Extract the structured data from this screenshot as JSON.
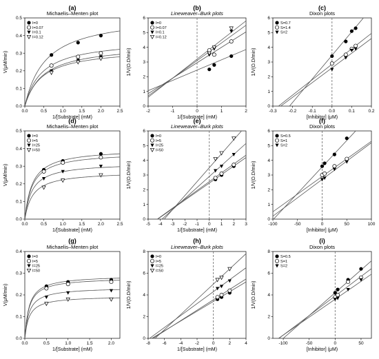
{
  "figure": {
    "theme": {
      "line_color": "#555555",
      "marker_color": "#000000",
      "dash_color": "#666666"
    }
  },
  "chart_data": [
    {
      "id": "a",
      "letter": "(a)",
      "title": "Michaelis–Menten plot",
      "title_italic": false,
      "type": "scatter",
      "xlabel": "1/[Substrate] (mM)",
      "ylabel": "V(μM/min)",
      "xlim": [
        0,
        2.5
      ],
      "ylim": [
        0,
        0.5
      ],
      "xticks": [
        0.0,
        0.5,
        1.0,
        1.5,
        2.0,
        2.5
      ],
      "xtick_labels": [
        "0.0",
        "0.5",
        "1.0",
        "1.5",
        "2.0",
        "2.5"
      ],
      "yticks": [
        0,
        0.1,
        0.2,
        0.3,
        0.4,
        0.5
      ],
      "ytick_labels": [
        "0.0",
        "0.1",
        "0.2",
        "0.3",
        "0.4",
        "0.5"
      ],
      "legend_position": "top-left",
      "series": [
        {
          "name": "I=0",
          "marker": "filled-circle",
          "x": [
            0.7,
            1.4,
            2.0
          ],
          "y": [
            0.29,
            0.36,
            0.4
          ],
          "fit": {
            "kind": "mm",
            "vmax": 0.52,
            "km": 0.55
          }
        },
        {
          "name": "I=0.07",
          "marker": "open-circle",
          "x": [
            0.7,
            1.4,
            2.0
          ],
          "y": [
            0.23,
            0.28,
            0.3
          ],
          "fit": {
            "kind": "mm",
            "vmax": 0.38,
            "km": 0.45
          }
        },
        {
          "name": "I=0.1",
          "marker": "filled-triangle",
          "x": [
            0.7,
            1.4,
            2.0
          ],
          "y": [
            0.2,
            0.26,
            0.28
          ],
          "fit": {
            "kind": "mm",
            "vmax": 0.35,
            "km": 0.48
          }
        },
        {
          "name": "I=0.12",
          "marker": "open-triangle",
          "x": [
            0.7,
            1.4,
            2.0
          ],
          "y": [
            0.19,
            0.25,
            0.27
          ],
          "fit": {
            "kind": "mm",
            "vmax": 0.33,
            "km": 0.45
          }
        }
      ]
    },
    {
      "id": "b",
      "letter": "(b)",
      "title": "Lineweaver–Burk plots",
      "title_italic": true,
      "type": "scatter",
      "xlabel": "1/[Substrate] (mM)",
      "ylabel": "1/V(O.D/min)",
      "xlim": [
        -2,
        2
      ],
      "ylim": [
        0,
        6
      ],
      "vline": 0,
      "xticks": [
        -2,
        -1,
        0,
        1,
        2
      ],
      "xtick_labels": [
        "-2",
        "-1",
        "0",
        "1",
        "2"
      ],
      "yticks": [
        0,
        1,
        2,
        3,
        4,
        5,
        6
      ],
      "ytick_labels": [
        "0",
        "1",
        "2",
        "3",
        "4",
        "5",
        "6"
      ],
      "legend_position": "top-left",
      "series": [
        {
          "name": "I=0",
          "marker": "filled-circle",
          "x": [
            0.5,
            0.7,
            1.4
          ],
          "y": [
            2.5,
            2.8,
            3.4
          ],
          "fit": {
            "kind": "line",
            "slope": 0.7,
            "intercept": 2.45
          }
        },
        {
          "name": "I=0.07",
          "marker": "open-circle",
          "x": [
            0.5,
            0.7,
            1.4
          ],
          "y": [
            3.8,
            3.5,
            4.4
          ],
          "fit": {
            "kind": "line",
            "slope": 1.05,
            "intercept": 2.95
          }
        },
        {
          "name": "I=0.1",
          "marker": "filled-triangle",
          "x": [
            0.5,
            0.7,
            1.4
          ],
          "y": [
            3.5,
            3.9,
            5.1
          ],
          "fit": {
            "kind": "line",
            "slope": 1.2,
            "intercept": 3.1
          }
        },
        {
          "name": "I=0.12",
          "marker": "open-triangle",
          "x": [
            0.5,
            0.7,
            1.4
          ],
          "y": [
            3.6,
            4.0,
            5.3
          ],
          "fit": {
            "kind": "line",
            "slope": 1.3,
            "intercept": 3.2
          }
        }
      ]
    },
    {
      "id": "c",
      "letter": "(c)",
      "title": "Dixon plots",
      "title_italic": false,
      "type": "scatter",
      "xlabel": "[Inhibitor] (μM)",
      "ylabel": "1/V(O.D/min)",
      "xlim": [
        -0.3,
        0.2
      ],
      "ylim": [
        0,
        6
      ],
      "vline": 0,
      "xticks": [
        -0.3,
        -0.2,
        -0.1,
        0,
        0.1,
        0.2
      ],
      "xtick_labels": [
        "-0.3",
        "-0.2",
        "-0.1",
        "0.0",
        "0.1",
        "0.2"
      ],
      "yticks": [
        0,
        1,
        2,
        3,
        4,
        5,
        6
      ],
      "ytick_labels": [
        "0",
        "1",
        "2",
        "3",
        "4",
        "5",
        "6"
      ],
      "legend_position": "top-left",
      "series": [
        {
          "name": "S=0.7",
          "marker": "filled-circle",
          "x": [
            0,
            0.07,
            0.1,
            0.12
          ],
          "y": [
            3.4,
            4.4,
            5.1,
            5.3
          ],
          "fit": {
            "kind": "line",
            "slope": 16.0,
            "intercept": 3.45
          }
        },
        {
          "name": "S=1.4",
          "marker": "open-circle",
          "x": [
            0,
            0.07,
            0.1,
            0.12
          ],
          "y": [
            2.9,
            3.5,
            3.9,
            4.1
          ],
          "fit": {
            "kind": "line",
            "slope": 10.5,
            "intercept": 2.85
          }
        },
        {
          "name": "S=2",
          "marker": "filled-triangle",
          "x": [
            0,
            0.07,
            0.1,
            0.12
          ],
          "y": [
            2.5,
            3.3,
            3.8,
            3.9
          ],
          "fit": {
            "kind": "line",
            "slope": 10.0,
            "intercept": 2.6
          }
        }
      ]
    },
    {
      "id": "d",
      "letter": "(d)",
      "title": "Michaelis–Menten plot",
      "title_italic": false,
      "type": "scatter",
      "xlabel": "1/[Substrate] (mM)",
      "ylabel": "V(μM/min)",
      "xlim": [
        0,
        2.5
      ],
      "ylim": [
        0,
        0.5
      ],
      "xticks": [
        0.0,
        0.5,
        1.0,
        1.5,
        2.0,
        2.5
      ],
      "xtick_labels": [
        "0.0",
        "0.5",
        "1.0",
        "1.5",
        "2.0",
        "2.5"
      ],
      "yticks": [
        0,
        0.1,
        0.2,
        0.3,
        0.4,
        0.5
      ],
      "ytick_labels": [
        "0.0",
        "0.1",
        "0.2",
        "0.3",
        "0.4",
        "0.5"
      ],
      "legend_position": "top-left",
      "series": [
        {
          "name": "I=0",
          "marker": "filled-circle",
          "x": [
            0.5,
            1.0,
            2.0
          ],
          "y": [
            0.28,
            0.33,
            0.37
          ],
          "fit": {
            "kind": "mm",
            "vmax": 0.4,
            "km": 0.2
          }
        },
        {
          "name": "I=5",
          "marker": "open-circle",
          "x": [
            0.5,
            1.0,
            2.0
          ],
          "y": [
            0.27,
            0.32,
            0.35
          ],
          "fit": {
            "kind": "mm",
            "vmax": 0.38,
            "km": 0.2
          }
        },
        {
          "name": "I=25",
          "marker": "filled-triangle",
          "x": [
            0.5,
            1.0,
            2.0
          ],
          "y": [
            0.23,
            0.27,
            0.3
          ],
          "fit": {
            "kind": "mm",
            "vmax": 0.32,
            "km": 0.19
          }
        },
        {
          "name": "I=50",
          "marker": "open-triangle",
          "x": [
            0.5,
            1.0,
            2.0
          ],
          "y": [
            0.18,
            0.22,
            0.25
          ],
          "fit": {
            "kind": "mm",
            "vmax": 0.27,
            "km": 0.21
          }
        }
      ]
    },
    {
      "id": "e",
      "letter": "(e)",
      "title": "Lineweaver–Burk plots",
      "title_italic": true,
      "type": "scatter",
      "xlabel": "1/[Substrate] (mM)",
      "ylabel": "1/V(O.D/min)",
      "xlim": [
        -5,
        3
      ],
      "ylim": [
        0,
        6
      ],
      "vline": 0,
      "xticks": [
        -5,
        -4,
        -3,
        -2,
        -1,
        0,
        1,
        2,
        3
      ],
      "xtick_labels": [
        "-5",
        "-4",
        "-3",
        "-2",
        "-1",
        "0",
        "1",
        "2",
        "3"
      ],
      "yticks": [
        0,
        1,
        2,
        3,
        4,
        5,
        6
      ],
      "ytick_labels": [
        "0",
        "1",
        "2",
        "3",
        "4",
        "5",
        "6"
      ],
      "legend_position": "top-left",
      "series": [
        {
          "name": "I=0",
          "marker": "filled-circle",
          "x": [
            0.5,
            1.0,
            2.0
          ],
          "y": [
            2.7,
            3.0,
            3.6
          ],
          "fit": {
            "kind": "line",
            "slope": 0.58,
            "intercept": 2.45
          }
        },
        {
          "name": "I=5",
          "marker": "open-circle",
          "x": [
            0.5,
            1.0,
            2.0
          ],
          "y": [
            2.8,
            3.1,
            3.7
          ],
          "fit": {
            "kind": "line",
            "slope": 0.6,
            "intercept": 2.55
          }
        },
        {
          "name": "I=25",
          "marker": "filled-triangle",
          "x": [
            0.5,
            1.0,
            2.0
          ],
          "y": [
            3.3,
            3.6,
            4.4
          ],
          "fit": {
            "kind": "line",
            "slope": 0.75,
            "intercept": 2.9
          }
        },
        {
          "name": "I=50",
          "marker": "open-triangle",
          "x": [
            0.5,
            1.0,
            2.0
          ],
          "y": [
            4.1,
            4.5,
            5.5
          ],
          "fit": {
            "kind": "line",
            "slope": 0.95,
            "intercept": 3.5
          }
        }
      ]
    },
    {
      "id": "f",
      "letter": "(f)",
      "title": "Dixon plots",
      "title_italic": false,
      "type": "scatter",
      "xlabel": "[Inhibitor] (μM)",
      "ylabel": "1/V(O.D/min)",
      "xlim": [
        -100,
        100
      ],
      "ylim": [
        0,
        6
      ],
      "vline": 0,
      "xticks": [
        -100,
        -50,
        0,
        50,
        100
      ],
      "xtick_labels": [
        "-100",
        "-50",
        "0",
        "50",
        "100"
      ],
      "yticks": [
        0,
        1,
        2,
        3,
        4,
        5,
        6
      ],
      "ytick_labels": [
        "0",
        "1",
        "2",
        "3",
        "4",
        "5",
        "6"
      ],
      "legend_position": "top-left",
      "series": [
        {
          "name": "S=0.5",
          "marker": "filled-circle",
          "x": [
            0,
            5,
            25,
            50
          ],
          "y": [
            3.6,
            3.8,
            4.4,
            5.5
          ],
          "fit": {
            "kind": "line",
            "slope": 0.036,
            "intercept": 3.55
          }
        },
        {
          "name": "S=1",
          "marker": "open-circle",
          "x": [
            0,
            5,
            25,
            50
          ],
          "y": [
            3.0,
            3.1,
            3.6,
            4.1
          ],
          "fit": {
            "kind": "line",
            "slope": 0.024,
            "intercept": 2.9
          }
        },
        {
          "name": "S=2",
          "marker": "filled-triangle",
          "x": [
            0,
            5,
            25,
            50
          ],
          "y": [
            2.7,
            2.8,
            3.4,
            3.9
          ],
          "fit": {
            "kind": "line",
            "slope": 0.025,
            "intercept": 2.7
          }
        }
      ]
    },
    {
      "id": "g",
      "letter": "(g)",
      "title": "Michaelis–Menten plot",
      "title_italic": false,
      "type": "scatter",
      "xlabel": "1/[Substrate] (mM)",
      "ylabel": "V(μM/min)",
      "xlim": [
        0,
        2.2
      ],
      "ylim": [
        0,
        0.4
      ],
      "xticks": [
        0.0,
        0.5,
        1.0,
        1.5,
        2.0
      ],
      "xtick_labels": [
        "0.0",
        "0.5",
        "1.0",
        "1.5",
        "2.0"
      ],
      "yticks": [
        0,
        0.1,
        0.2,
        0.3,
        0.4
      ],
      "ytick_labels": [
        "0.0",
        "0.1",
        "0.2",
        "0.3",
        "0.4"
      ],
      "legend_position": "top-left",
      "series": [
        {
          "name": "I=0",
          "marker": "filled-circle",
          "x": [
            0.5,
            1.0,
            2.0
          ],
          "y": [
            0.24,
            0.26,
            0.27
          ],
          "fit": {
            "kind": "mm",
            "vmax": 0.29,
            "km": 0.1
          }
        },
        {
          "name": "I=5",
          "marker": "open-circle",
          "x": [
            0.5,
            1.0,
            2.0
          ],
          "y": [
            0.23,
            0.25,
            0.26
          ],
          "fit": {
            "kind": "mm",
            "vmax": 0.28,
            "km": 0.1
          }
        },
        {
          "name": "I=25",
          "marker": "filled-triangle",
          "x": [
            0.5,
            1.0,
            2.0
          ],
          "y": [
            0.19,
            0.21,
            0.22
          ],
          "fit": {
            "kind": "mm",
            "vmax": 0.235,
            "km": 0.1
          }
        },
        {
          "name": "I=50",
          "marker": "open-triangle",
          "x": [
            0.5,
            1.0,
            2.0
          ],
          "y": [
            0.16,
            0.18,
            0.18
          ],
          "fit": {
            "kind": "mm",
            "vmax": 0.195,
            "km": 0.1
          }
        }
      ]
    },
    {
      "id": "h",
      "letter": "(h)",
      "title": "Lineweaver–Burk plots",
      "title_italic": true,
      "type": "scatter",
      "xlabel": "1/[Substrate] (mM)",
      "ylabel": "1/V(O.D/min)",
      "xlim": [
        -8,
        4
      ],
      "ylim": [
        0,
        8
      ],
      "vline": 0,
      "xticks": [
        -8,
        -6,
        -4,
        -2,
        0,
        2,
        4
      ],
      "xtick_labels": [
        "-8",
        "-6",
        "-4",
        "-2",
        "0",
        "2",
        "4"
      ],
      "yticks": [
        0,
        2,
        4,
        6,
        8
      ],
      "ytick_labels": [
        "0",
        "2",
        "4",
        "6",
        "8"
      ],
      "legend_position": "top-left",
      "series": [
        {
          "name": "I=0",
          "marker": "filled-circle",
          "x": [
            0.5,
            1.0,
            2.0
          ],
          "y": [
            3.6,
            3.8,
            4.2
          ],
          "fit": {
            "kind": "line",
            "slope": 0.45,
            "intercept": 3.4
          }
        },
        {
          "name": "I=5",
          "marker": "open-circle",
          "x": [
            0.5,
            1.0,
            2.0
          ],
          "y": [
            3.8,
            4.0,
            4.4
          ],
          "fit": {
            "kind": "line",
            "slope": 0.48,
            "intercept": 3.55
          }
        },
        {
          "name": "I=25",
          "marker": "filled-triangle",
          "x": [
            0.5,
            1.0,
            2.0
          ],
          "y": [
            4.6,
            4.8,
            5.3
          ],
          "fit": {
            "kind": "line",
            "slope": 0.55,
            "intercept": 4.3
          }
        },
        {
          "name": "I=50",
          "marker": "open-triangle",
          "x": [
            0.5,
            1.0,
            2.0
          ],
          "y": [
            5.4,
            5.6,
            6.4
          ],
          "fit": {
            "kind": "line",
            "slope": 0.7,
            "intercept": 5.0
          }
        }
      ]
    },
    {
      "id": "i",
      "letter": "(i)",
      "title": "Dixon plots",
      "title_italic": false,
      "type": "scatter",
      "xlabel": "[Inhibitor] (μM)",
      "ylabel": "1/V(O.D/min)",
      "xlim": [
        -120,
        70
      ],
      "ylim": [
        0,
        8
      ],
      "vline": 0,
      "xticks": [
        -100,
        -50,
        0,
        50
      ],
      "xtick_labels": [
        "-100",
        "-50",
        "0",
        "50"
      ],
      "yticks": [
        0,
        2,
        4,
        6,
        8
      ],
      "ytick_labels": [
        "0",
        "2",
        "4",
        "6",
        "8"
      ],
      "legend_position": "top-left",
      "series": [
        {
          "name": "S=0.5",
          "marker": "filled-circle",
          "x": [
            0,
            5,
            25,
            50
          ],
          "y": [
            4.2,
            4.5,
            5.4,
            6.4
          ],
          "fit": {
            "kind": "line",
            "slope": 0.042,
            "intercept": 4.2
          }
        },
        {
          "name": "S=1",
          "marker": "open-circle",
          "x": [
            0,
            5,
            25,
            50
          ],
          "y": [
            3.8,
            4.0,
            5.2,
            5.6
          ],
          "fit": {
            "kind": "line",
            "slope": 0.036,
            "intercept": 3.9
          }
        },
        {
          "name": "S=2",
          "marker": "filled-triangle",
          "x": [
            0,
            5,
            25,
            50
          ],
          "y": [
            3.6,
            3.7,
            4.5,
            5.4
          ],
          "fit": {
            "kind": "line",
            "slope": 0.033,
            "intercept": 3.6
          }
        }
      ]
    }
  ]
}
